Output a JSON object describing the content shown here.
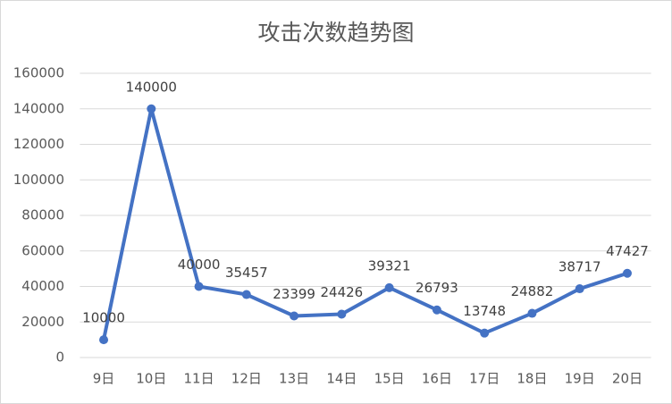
{
  "chart_data": {
    "type": "line",
    "title": "攻击次数趋势图",
    "categories": [
      "9日",
      "10日",
      "11日",
      "12日",
      "13日",
      "14日",
      "15日",
      "16日",
      "17日",
      "18日",
      "19日",
      "20日"
    ],
    "values": [
      10000,
      140000,
      40000,
      35457,
      23399,
      24426,
      39321,
      26793,
      13748,
      24882,
      38717,
      47427
    ],
    "color": "#4472c4",
    "ylim": [
      0,
      160000
    ],
    "yticks": [
      0,
      20000,
      40000,
      60000,
      80000,
      100000,
      120000,
      140000,
      160000
    ],
    "grid": true,
    "data_labels": true
  }
}
